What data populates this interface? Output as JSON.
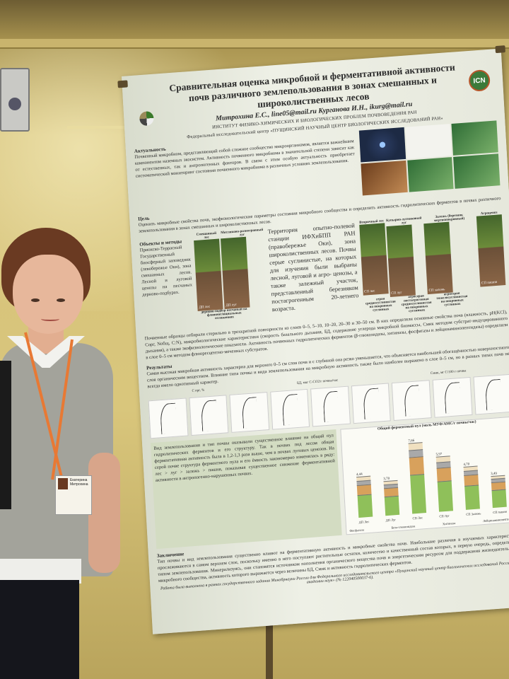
{
  "poster": {
    "title": "Сравнительная оценка микробной и ферментативной активности почв различного землепользования в зонах смешанных и широколиственных лесов",
    "authors": "Митрохина Е.С., line05@mail.ru  Курганова И.Н., ikurg@mail.ru",
    "institute": "ИНСТИТУТ ФИЗИКО-ХИМИЧЕСКИХ И БИОЛОГИЧЕСКИХ ПРОБЛЕМ ПОЧВОВЕДЕНИЯ РАН",
    "center": "Федеральный исследовательский центр «ПУЩИНСКИЙ НАУЧНЫЙ ЦЕНТР БИОЛОГИЧЕСКИХ ИССЛЕДОВАНИЙ РАН»",
    "logo_text": "ICN",
    "relevance_heading": "Актуальность",
    "relevance_text": "Почвенный микробиом, представляющий собой сложное сообщество микроорганизмов, является важнейшим компонентом наземных экосистем. Активность почвенного микробиома в значительной степени зависит как от естественных, так и антропогенных факторов. В связи с этим особую актуальность приобретает систематический мониторинг состояния почвенного микробиома в различных условиях землепользования.",
    "goal_heading": "Цель",
    "goal_text": "Оценить микробные свойства почв, экофизиологические параметры состояния микробного сообщества и определить активность гидролитических ферментов в почвах различного землепользования в зонах смешанных и широколиственных лесов.",
    "methods_heading": "Объекты и методы",
    "methods_text": "Приокско-Террасный Государственный биосферный заповедник (левобережье Оки), зона смешанных лесов. Лесной и луговой ценозы на песчаных дерново-подбурах.",
    "photos_left": [
      {
        "label": "Смешанный лес",
        "tag": "ДП лес"
      },
      {
        "label": "Мятликово-разнотравный луг",
        "tag": "ДП луг"
      }
    ],
    "photos_left_caption": "дерново-подбур песчаный на флювиогляциальных отложениях",
    "territory_text": "Территория опытно-полевой станции ИФХиБПП РАН (правобережье Оки), зона широколиственных лесов. Почвы серые суглинистые, на которых для изучения были выбраны лесной, луговой и агро- ценозы, а также залежный участок, представленный березняком постагрогенным 20-летнего возраста.",
    "photos_right": [
      {
        "label": "Вторичный лес",
        "tag": "СП лес"
      },
      {
        "label": "Купырно-лугвиковый луг",
        "tag": "СП луг"
      },
      {
        "label": "Залежь (березняк мертвопокровный)",
        "tag": "СП залежь"
      },
      {
        "label": "Агроценоз",
        "tag": "СП пашня"
      }
    ],
    "photos_right_captions": [
      "серая среднесуглинистая на покровных суглинках",
      "агросерая постагрогенная среднесуглинистая на покровных суглинках",
      "агросерая тяжелосуглинистая на покровных суглинках"
    ],
    "sampling_text": "Почвенные образцы отбирали стерильно в трехкратной повторности из слоев 0–5, 5–10, 10–20, 20–30 и 30–50 см. В них определяли основные свойства почв (влажность, pH(KCl), Cорг, Nобщ, C:N), микробиологические характеристики (скорость базального дыхания, БД, содержание углерода микробной биомассы, Cмик методом субстрат-индуцированного дыхания), а также экофизиологические показатели. Активность почвенных гидролитических ферментов (β-глюкозидазы, хитиназы, фосфатазы и лейцинаминопептидазы) определяли в слое 0–5 см методом флюоресцентно-меченных субстратов.",
    "results_heading": "Результаты",
    "results_text": "Самая высокая микробная активность характерна для верхнего 0–5 см слоя почв и с глубиной она резко уменьшается, что объясняется наибольшей обогащённостью поверхностного слоя органическим веществом. Влияние типа почвы и вида землепользования на микробную активность также было наиболее выражено в слое 0–5 см, но в разных типах почв не всегда имело однотипный характер.",
    "chart_labels": [
      "C орг, %",
      "БД, мкг C-CO2/г почвы/час",
      "Cмик, мг C/100 г почвы"
    ],
    "enzyme_text": "Вид землепользования и тип почвы оказывали существенное влияние на общий пул гидролитических ферментов и его структуру. Так в почвах под лесом общая ферментативная активность была в 1,2-1,3 раза выше, чем в почвах луговых ценозов. На серой почве структура ферментного пула и его ёмкость закономерно изменялась в ряду: лес > луг > залежь > пашня, показывая существенное снижение ферментативной активности в антропогенно-нарушенных почвах.",
    "enzyme_chart_title": "Общий ферментный пул (моль МУФ/АМС/г почвы/час)",
    "enzyme_totals": [
      "4,44",
      "3,78",
      "7,66",
      "5,97",
      "4,70",
      "3,49"
    ],
    "enzyme_groups": [
      "ДП Лес",
      "ДП Луг",
      "СП Лес",
      "СП Луг",
      "СП Залежь",
      "СП пашня"
    ],
    "enzyme_legend": [
      "Фосфатаза",
      "Бета-глюкозидаза",
      "Хитиназа",
      "Лейцинаминопептидаза"
    ],
    "colors": {
      "phosphatase": "#8fc05a",
      "glucosidase": "#d8a15c",
      "chitinase": "#a9a9a9",
      "leucine": "#f0e0c0"
    },
    "conclusion_heading": "Заключение",
    "conclusion_text": "Тип почвы и вид землепользования существенно влияют на ферментативную активность и микробные свойства почв. Наибольшие различия в изучаемых характеристиках прослеживаются в самом верхнем слое, поскольку именно в него поступают растительные остатки, количество и качественный состав которых, в первую очередь, определяются типом землепользования. Минерализуясь, они становятся источником пополнения органического вещества почв и энергетическим ресурсом для поддержания жизнедеятельности микробного сообщества, активность которого выражается через величины БД, Смик и активность гидролитических ферментов.",
    "funding": "Работа была выполнена в рамках государственного задания Минобрнауки России для Федерального исследовательского центра «Пущинский научный центр биологических исследований Российской академии наук» (№ 122040500037-6)."
  },
  "badge": {
    "name": "Екатерина Митрохина"
  }
}
